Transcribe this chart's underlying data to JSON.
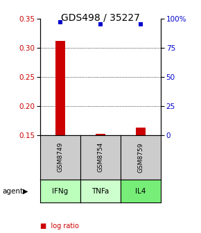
{
  "title": "GDS498 / 35227",
  "samples": [
    "GSM8749",
    "GSM8754",
    "GSM8759"
  ],
  "agents": [
    "IFNg",
    "TNFa",
    "IL4"
  ],
  "log_ratios": [
    0.312,
    0.152,
    0.163
  ],
  "percentile_ranks": [
    97,
    95,
    95
  ],
  "ylim_left": [
    0.15,
    0.35
  ],
  "ylim_right": [
    0,
    100
  ],
  "yticks_left": [
    0.15,
    0.2,
    0.25,
    0.3,
    0.35
  ],
  "yticks_right": [
    0,
    25,
    50,
    75,
    100
  ],
  "bar_color": "#cc0000",
  "point_color": "#0000cc",
  "agent_colors": [
    "#bbffbb",
    "#ccffcc",
    "#77ee77"
  ],
  "sample_bg": "#cccccc",
  "title_fontsize": 10,
  "tick_fontsize": 7.5,
  "legend_fontsize": 7,
  "bar_width": 0.25,
  "x_positions": [
    1,
    2,
    3
  ]
}
